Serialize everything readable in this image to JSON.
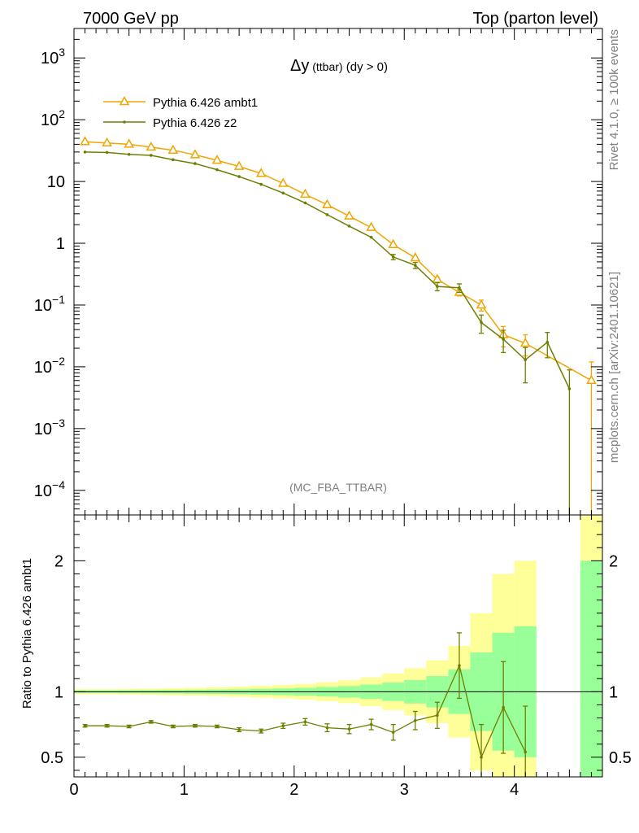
{
  "header": {
    "left": "7000 GeV pp",
    "right": "Top (parton level)"
  },
  "side_text": {
    "rivet": "Rivet 4.1.0, ≥ 100k events",
    "mcplots": "mcplots.cern.ch [arXiv:2401.10621]"
  },
  "colors": {
    "ambt1": "#f0a500",
    "z2": "#6e7f00",
    "band_inner": "#99ff99",
    "band_outer": "#ffff99"
  },
  "chart_data": [
    {
      "type": "line",
      "title_main": "Δy",
      "title_small": " (ttbar)",
      "title_rest": " (dy > 0)",
      "watermark": "(MC_FBA_TTBAR)",
      "yscale": "log",
      "xlim": [
        0,
        4.8
      ],
      "ylim": [
        4e-05,
        3000
      ],
      "y_ticks": [
        {
          "value": 1000,
          "base": "10",
          "exp": "3"
        },
        {
          "value": 100,
          "base": "10",
          "exp": "2"
        },
        {
          "value": 10,
          "base": "10",
          "exp": ""
        },
        {
          "value": 1,
          "base": "1",
          "exp": ""
        },
        {
          "value": 0.1,
          "base": "10",
          "exp": "−1"
        },
        {
          "value": 0.01,
          "base": "10",
          "exp": "−2"
        },
        {
          "value": 0.001,
          "base": "10",
          "exp": "−3"
        },
        {
          "value": 0.0001,
          "base": "10",
          "exp": "−4"
        }
      ],
      "legend_position": "top-left",
      "series": [
        {
          "name": "Pythia 6.426 ambt1",
          "marker": "open-triangle",
          "x": [
            0.1,
            0.3,
            0.5,
            0.7,
            0.9,
            1.1,
            1.3,
            1.5,
            1.7,
            1.9,
            2.1,
            2.3,
            2.5,
            2.7,
            2.9,
            3.1,
            3.3,
            3.5,
            3.7,
            3.9,
            4.1,
            4.7
          ],
          "y": [
            44,
            42,
            40,
            36,
            32,
            27,
            22,
            17.5,
            13.5,
            9.3,
            6.2,
            4.2,
            2.75,
            1.8,
            0.95,
            0.58,
            0.26,
            0.16,
            0.1,
            0.033,
            0.024,
            0.006
          ],
          "err_lo": [
            0,
            0,
            0,
            0,
            0,
            0,
            0,
            0,
            0,
            0,
            0,
            0,
            0,
            0,
            0,
            0,
            0.02,
            0.02,
            0.02,
            0.012,
            0.009,
            0.006
          ],
          "err_hi": [
            0,
            0,
            0,
            0,
            0,
            0,
            0,
            0,
            0,
            0,
            0,
            0,
            0,
            0,
            0,
            0,
            0.02,
            0.02,
            0.02,
            0.012,
            0.009,
            0.006
          ]
        },
        {
          "name": "Pythia 6.426 z2",
          "marker": "dot",
          "x": [
            0.1,
            0.3,
            0.5,
            0.7,
            0.9,
            1.1,
            1.3,
            1.5,
            1.7,
            1.9,
            2.1,
            2.3,
            2.5,
            2.7,
            2.9,
            3.1,
            3.3,
            3.5,
            3.7,
            3.9,
            4.1,
            4.3,
            4.5
          ],
          "y": [
            30,
            29.5,
            27.5,
            26.5,
            22.5,
            19.5,
            15.5,
            12,
            9,
            6.5,
            4.5,
            2.9,
            1.9,
            1.25,
            0.6,
            0.44,
            0.2,
            0.19,
            0.052,
            0.028,
            0.013,
            0.025,
            0.0044
          ],
          "err_lo": [
            0,
            0,
            0,
            0,
            0,
            0,
            0,
            0,
            0,
            0,
            0,
            0,
            0,
            0,
            0.06,
            0.05,
            0.03,
            0.03,
            0.017,
            0.011,
            0.0075,
            0.011,
            0.0044
          ],
          "err_hi": [
            0,
            0,
            0,
            0,
            0,
            0,
            0,
            0,
            0,
            0,
            0,
            0,
            0,
            0,
            0.06,
            0.05,
            0.03,
            0.03,
            0.017,
            0.011,
            0.0075,
            0.011,
            0.0045
          ]
        }
      ]
    },
    {
      "type": "line",
      "ylabel": "Ratio to Pythia 6.426 ambt1",
      "xlim": [
        0,
        4.8
      ],
      "ylim": [
        0.35,
        2.35
      ],
      "x_ticks": [
        0,
        1,
        2,
        3,
        4
      ],
      "y_ticks": [
        0.5,
        1,
        2
      ],
      "reference_line": 1,
      "band_edges": [
        0,
        0.2,
        0.4,
        0.6,
        0.8,
        1.0,
        1.2,
        1.4,
        1.6,
        1.8,
        2.0,
        2.2,
        2.4,
        2.6,
        2.8,
        3.0,
        3.2,
        3.4,
        3.6,
        3.8,
        4.0,
        4.2
      ],
      "band_inner": [
        0.01,
        0.01,
        0.011,
        0.012,
        0.013,
        0.015,
        0.017,
        0.019,
        0.022,
        0.026,
        0.03,
        0.036,
        0.044,
        0.055,
        0.07,
        0.09,
        0.12,
        0.17,
        0.3,
        0.45,
        0.5
      ],
      "band_outer": [
        0.02,
        0.02,
        0.022,
        0.024,
        0.027,
        0.03,
        0.034,
        0.039,
        0.045,
        0.052,
        0.06,
        0.072,
        0.088,
        0.11,
        0.14,
        0.18,
        0.24,
        0.35,
        0.6,
        0.9,
        1.0
      ],
      "band_last": {
        "x0": 4.6,
        "x1": 4.8,
        "inner_hi": 2.0,
        "outer_hi": 2.4
      },
      "series": [
        {
          "name": "Pythia 6.426 z2 / ambt1",
          "x": [
            0.1,
            0.3,
            0.5,
            0.7,
            0.9,
            1.1,
            1.3,
            1.5,
            1.7,
            1.9,
            2.1,
            2.3,
            2.5,
            2.7,
            2.9,
            3.1,
            3.3,
            3.5,
            3.7,
            3.9,
            4.1
          ],
          "y": [
            0.74,
            0.74,
            0.735,
            0.77,
            0.735,
            0.74,
            0.735,
            0.71,
            0.7,
            0.74,
            0.77,
            0.725,
            0.715,
            0.75,
            0.69,
            0.78,
            0.82,
            1.2,
            0.5,
            0.88,
            0.54
          ],
          "err_lo": [
            0.01,
            0.01,
            0.01,
            0.01,
            0.01,
            0.01,
            0.01,
            0.015,
            0.015,
            0.02,
            0.025,
            0.03,
            0.035,
            0.04,
            0.06,
            0.07,
            0.1,
            0.25,
            0.25,
            0.35,
            0.35
          ],
          "err_hi": [
            0.01,
            0.01,
            0.01,
            0.01,
            0.01,
            0.01,
            0.01,
            0.015,
            0.015,
            0.02,
            0.025,
            0.03,
            0.035,
            0.04,
            0.06,
            0.07,
            0.1,
            0.25,
            0.25,
            0.35,
            0.35
          ]
        }
      ]
    }
  ]
}
